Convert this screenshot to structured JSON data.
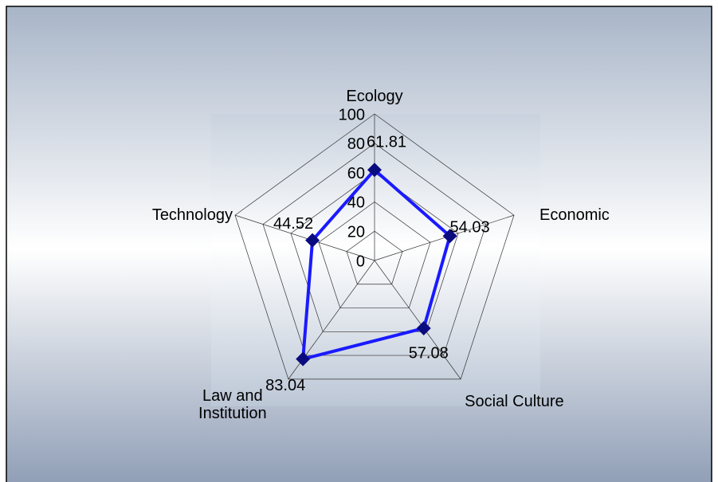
{
  "chart_data": {
    "type": "radar",
    "categories": [
      "Ecology",
      "Economic",
      "Social Culture",
      "Law and Institution",
      "Technology"
    ],
    "values": [
      61.81,
      54.03,
      57.08,
      83.04,
      44.52
    ],
    "color": "#1a1aff",
    "marker_color": "#0b0b80",
    "rlim": [
      0,
      100
    ],
    "rticks": [
      0,
      20,
      40,
      60,
      80,
      100
    ],
    "grid": true
  }
}
